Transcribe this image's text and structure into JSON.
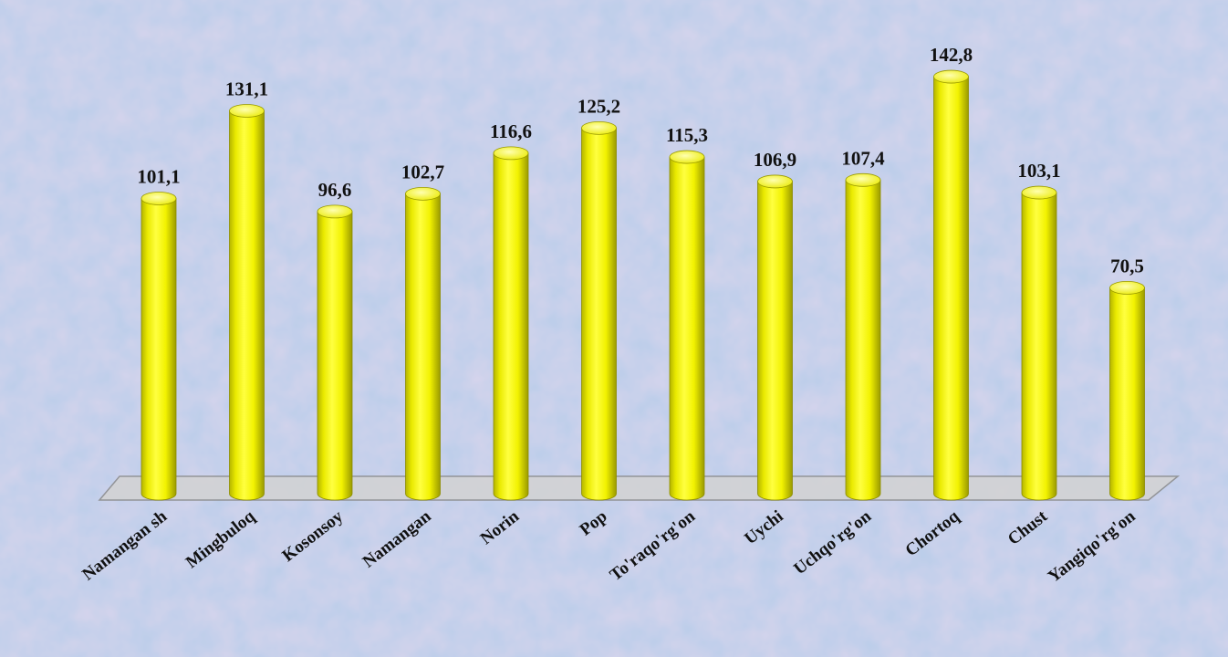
{
  "chart_data": {
    "type": "bar",
    "categories": [
      "Namangan sh",
      "Mingbuloq",
      "Kosonsoy",
      "Namangan",
      "Norin",
      "Pop",
      "To'raqo'rg'on",
      "Uychi",
      "Uchqo'rg'on",
      "Chortoq",
      "Chust",
      "Yangiqo'rg'on"
    ],
    "values": [
      101.1,
      131.1,
      96.6,
      102.7,
      116.6,
      125.2,
      115.3,
      106.9,
      107.4,
      142.8,
      103.1,
      70.5
    ],
    "value_labels": [
      "101,1",
      "131,1",
      "96,6",
      "102,7",
      "116,6",
      "125,2",
      "115,3",
      "106,9",
      "107,4",
      "142,8",
      "103,1",
      "70,5"
    ],
    "ylim": [
      0,
      150
    ],
    "grid": false,
    "legend": "none",
    "title": "",
    "xlabel": "",
    "ylabel": ""
  },
  "colors": {
    "bar_fill": "#ffff00",
    "bar_shadow": "#9a9a00",
    "bar_top": "#ffff99",
    "floor": "#d3d3d3",
    "floor_edge": "#8a8a8a",
    "background": "#b9cdea"
  }
}
